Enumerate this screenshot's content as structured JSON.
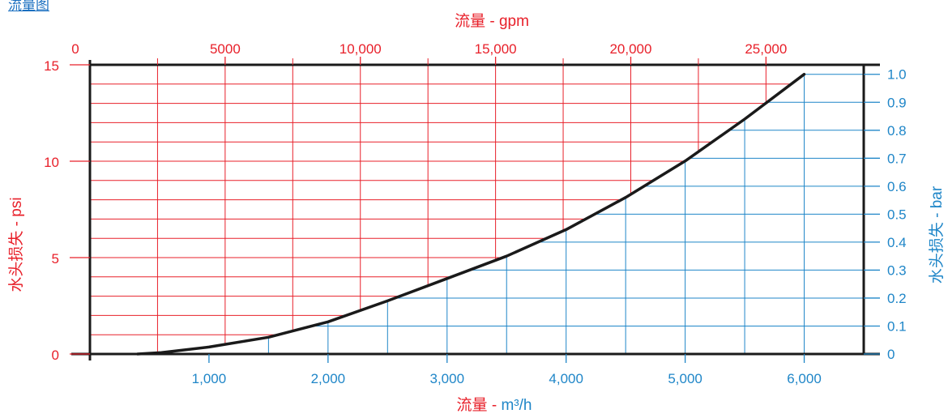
{
  "header": {
    "link_text": "流量图"
  },
  "colors": {
    "red": "#e8202a",
    "blue": "#1f86c8",
    "curve": "#1a1a1a",
    "axis": "#1a1a1a",
    "link": "#1a6fc0"
  },
  "chart_data": {
    "type": "line",
    "title": "",
    "top_axis": {
      "label_prefix": "流量",
      "label_suffix": "gpm",
      "label_sep": " - ",
      "tick_labels": [
        "0",
        "5000",
        "10,000",
        "15,000",
        "20,000",
        "25,000"
      ],
      "tick_values": [
        0,
        5000,
        10000,
        15000,
        20000,
        25000
      ],
      "grid_values": [
        2500,
        5000,
        7500,
        10000,
        12500,
        15000,
        17500,
        20000,
        22500,
        25000
      ],
      "range": [
        0,
        28615
      ]
    },
    "bottom_axis": {
      "label_prefix": "流量",
      "label_suffix": "m³/h",
      "label_sep": " - ",
      "tick_labels": [
        "1,000",
        "2,000",
        "3,000",
        "4,000",
        "5,000",
        "6,000"
      ],
      "tick_values": [
        1000,
        2000,
        3000,
        4000,
        5000,
        6000
      ],
      "grid_values": [
        1500,
        2000,
        2500,
        3000,
        3500,
        4000,
        4500,
        5000,
        5500,
        6000
      ],
      "range": [
        0,
        6500
      ]
    },
    "left_axis": {
      "label_prefix": "水头损失",
      "label_suffix": "psi",
      "label_sep": " - ",
      "tick_labels": [
        "0",
        "5",
        "10",
        "15"
      ],
      "tick_values": [
        0,
        5,
        10,
        15
      ],
      "grid_values": [
        1,
        2,
        3,
        4,
        5,
        6,
        7,
        8,
        9,
        10,
        11,
        12,
        13,
        14
      ],
      "range": [
        0,
        15
      ]
    },
    "right_axis": {
      "label_prefix": "水头损失",
      "label_suffix": "bar",
      "label_sep": " - ",
      "tick_labels": [
        "0",
        "0.1",
        "0.2",
        "0.3",
        "0.4",
        "0.5",
        "0.6",
        "0.7",
        "0.8",
        "0.9",
        "1.0"
      ],
      "tick_values": [
        0,
        0.1,
        0.2,
        0.3,
        0.4,
        0.5,
        0.6,
        0.7,
        0.8,
        0.9,
        1.0
      ],
      "range": [
        0,
        1.034
      ]
    },
    "series": [
      {
        "x_m3h": [
          400,
          600,
          1000,
          1500,
          2000,
          2500,
          3000,
          3500,
          4000,
          4500,
          5000,
          5500,
          6000
        ],
        "y_bar": [
          0,
          0.005,
          0.025,
          0.06,
          0.115,
          0.19,
          0.27,
          0.35,
          0.445,
          0.56,
          0.69,
          0.84,
          1.0
        ]
      }
    ],
    "grid": true
  }
}
